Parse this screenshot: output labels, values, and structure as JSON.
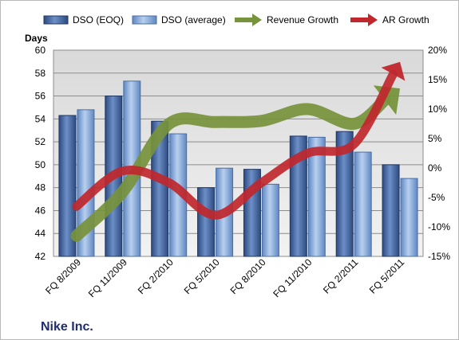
{
  "chart_data": {
    "type": "bar",
    "title": "Nike Inc.",
    "ylabel": "Days",
    "categories": [
      "FQ 8/2009",
      "FQ 11/2009",
      "FQ 2/2010",
      "FQ 5/2010",
      "FQ 8/2010",
      "FQ 11/2010",
      "FQ 2/2011",
      "FQ 5/2011"
    ],
    "ylim": [
      42,
      60
    ],
    "yticks": [
      "42",
      "44",
      "46",
      "48",
      "50",
      "52",
      "54",
      "56",
      "58",
      "60"
    ],
    "y2lim": [
      -15,
      20
    ],
    "y2ticks": [
      "-15%",
      "-10%",
      "-5%",
      "0%",
      "5%",
      "10%",
      "15%",
      "20%"
    ],
    "grid": true,
    "legend_position": "top",
    "series": [
      {
        "name": "DSO (EOQ)",
        "type": "bar",
        "axis": "left",
        "color": "#4f6fa8",
        "values": [
          54.3,
          56.0,
          53.8,
          48.0,
          49.6,
          52.5,
          52.9,
          50.0
        ]
      },
      {
        "name": "DSO (average)",
        "type": "bar",
        "axis": "left",
        "color": "#8db3e2",
        "values": [
          54.8,
          57.3,
          52.7,
          49.7,
          48.3,
          52.4,
          51.1,
          48.8
        ]
      },
      {
        "name": "Revenue Growth",
        "type": "line",
        "axis": "right",
        "color": "#77933c",
        "values": [
          -11.5,
          -4.0,
          7.5,
          7.8,
          8.0,
          10.0,
          7.5,
          13.5
        ]
      },
      {
        "name": "AR Growth",
        "type": "line",
        "axis": "right",
        "color": "#c0272d",
        "values": [
          -6.5,
          -0.5,
          -2.5,
          -8.0,
          -2.5,
          2.5,
          4.0,
          18.0
        ]
      }
    ]
  }
}
